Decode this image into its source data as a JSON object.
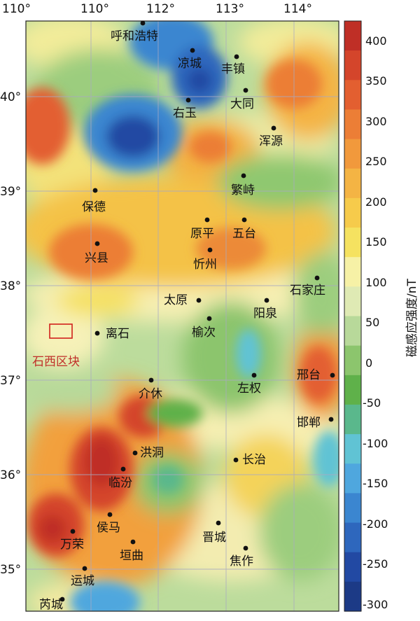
{
  "map": {
    "longitude_labels": [
      "110°",
      "110°",
      "112°",
      "113°",
      "114°"
    ],
    "latitude_labels": [
      "40°",
      "39°",
      "38°",
      "37°",
      "36°",
      "35°"
    ],
    "study_block_label": "石西区块",
    "study_block_color": "#d0211c"
  },
  "colorbar": {
    "title": "磁感应强度/nT",
    "ticks": [
      "400",
      "350",
      "300",
      "250",
      "200",
      "150",
      "100",
      "50",
      "0",
      "-50",
      "-100",
      "-150",
      "-200",
      "-250",
      "-300"
    ],
    "colors": [
      "#bf2f26",
      "#d4452b",
      "#e35f30",
      "#ec7e36",
      "#f1993c",
      "#f4b444",
      "#f6cb4b",
      "#f5e260",
      "#f6f1a6",
      "#dfeab4",
      "#b8d99a",
      "#8cc56d",
      "#5fb14a",
      "#5ab88c",
      "#60c3d4",
      "#4fa7de",
      "#3b86d0",
      "#2e67bd",
      "#2249a3",
      "#1c3a86"
    ]
  },
  "cities": [
    {
      "id": "huhehaote",
      "name": "呼和浩特"
    },
    {
      "id": "liangcheng",
      "name": "凉城"
    },
    {
      "id": "fengzhen",
      "name": "丰镇"
    },
    {
      "id": "datong",
      "name": "大同"
    },
    {
      "id": "youyu",
      "name": "右玉"
    },
    {
      "id": "hunyuan",
      "name": "浑源"
    },
    {
      "id": "fanzhi",
      "name": "繁峙"
    },
    {
      "id": "baode",
      "name": "保德"
    },
    {
      "id": "yuanping",
      "name": "原平"
    },
    {
      "id": "wutai",
      "name": "五台"
    },
    {
      "id": "xingxian",
      "name": "兴县"
    },
    {
      "id": "xinzhou",
      "name": "忻州"
    },
    {
      "id": "shijiazhuang",
      "name": "石家庄"
    },
    {
      "id": "taiyuan",
      "name": "太原"
    },
    {
      "id": "yangquan",
      "name": "阳泉"
    },
    {
      "id": "lishi",
      "name": "离石"
    },
    {
      "id": "yuci",
      "name": "榆次"
    },
    {
      "id": "xingtai",
      "name": "邢台"
    },
    {
      "id": "zuoquan",
      "name": "左权"
    },
    {
      "id": "jiexiu",
      "name": "介休"
    },
    {
      "id": "handan",
      "name": "邯郸"
    },
    {
      "id": "hongdong",
      "name": "洪洞"
    },
    {
      "id": "changzhi",
      "name": "长治"
    },
    {
      "id": "linfen",
      "name": "临汾"
    },
    {
      "id": "houma",
      "name": "侯马"
    },
    {
      "id": "wanrong",
      "name": "万荣"
    },
    {
      "id": "jincheng",
      "name": "晋城"
    },
    {
      "id": "yuanqu",
      "name": "垣曲"
    },
    {
      "id": "jiaozuo",
      "name": "焦作"
    },
    {
      "id": "yuncheng",
      "name": "运城"
    },
    {
      "id": "ruicheng",
      "name": "芮城"
    }
  ]
}
